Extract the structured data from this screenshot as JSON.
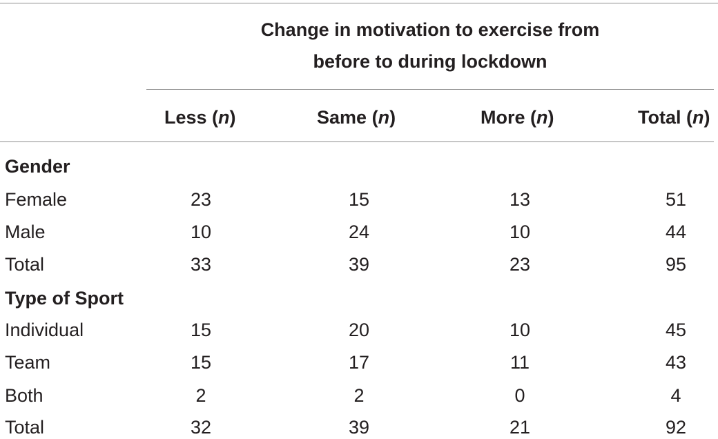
{
  "table": {
    "spanner_line1": "Change in motivation to exercise from",
    "spanner_line2": "before to during lockdown",
    "columns": [
      {
        "label": "Less",
        "n": "n"
      },
      {
        "label": "Same",
        "n": "n"
      },
      {
        "label": "More",
        "n": "n"
      },
      {
        "label": "Total",
        "n": "n"
      }
    ],
    "sections": [
      {
        "title": "Gender",
        "rows": [
          {
            "label": "Female",
            "values": [
              "23",
              "15",
              "13",
              "51"
            ]
          },
          {
            "label": "Male",
            "values": [
              "10",
              "24",
              "10",
              "44"
            ]
          },
          {
            "label": "Total",
            "values": [
              "33",
              "39",
              "23",
              "95"
            ]
          }
        ]
      },
      {
        "title": "Type of Sport",
        "rows": [
          {
            "label": "Individual",
            "values": [
              "15",
              "20",
              "10",
              "45"
            ]
          },
          {
            "label": "Team",
            "values": [
              "15",
              "17",
              "11",
              "43"
            ]
          },
          {
            "label": "Both",
            "values": [
              "2",
              "2",
              "0",
              "4"
            ]
          },
          {
            "label": "Total",
            "values": [
              "32",
              "39",
              "21",
              "92"
            ]
          }
        ]
      }
    ]
  }
}
